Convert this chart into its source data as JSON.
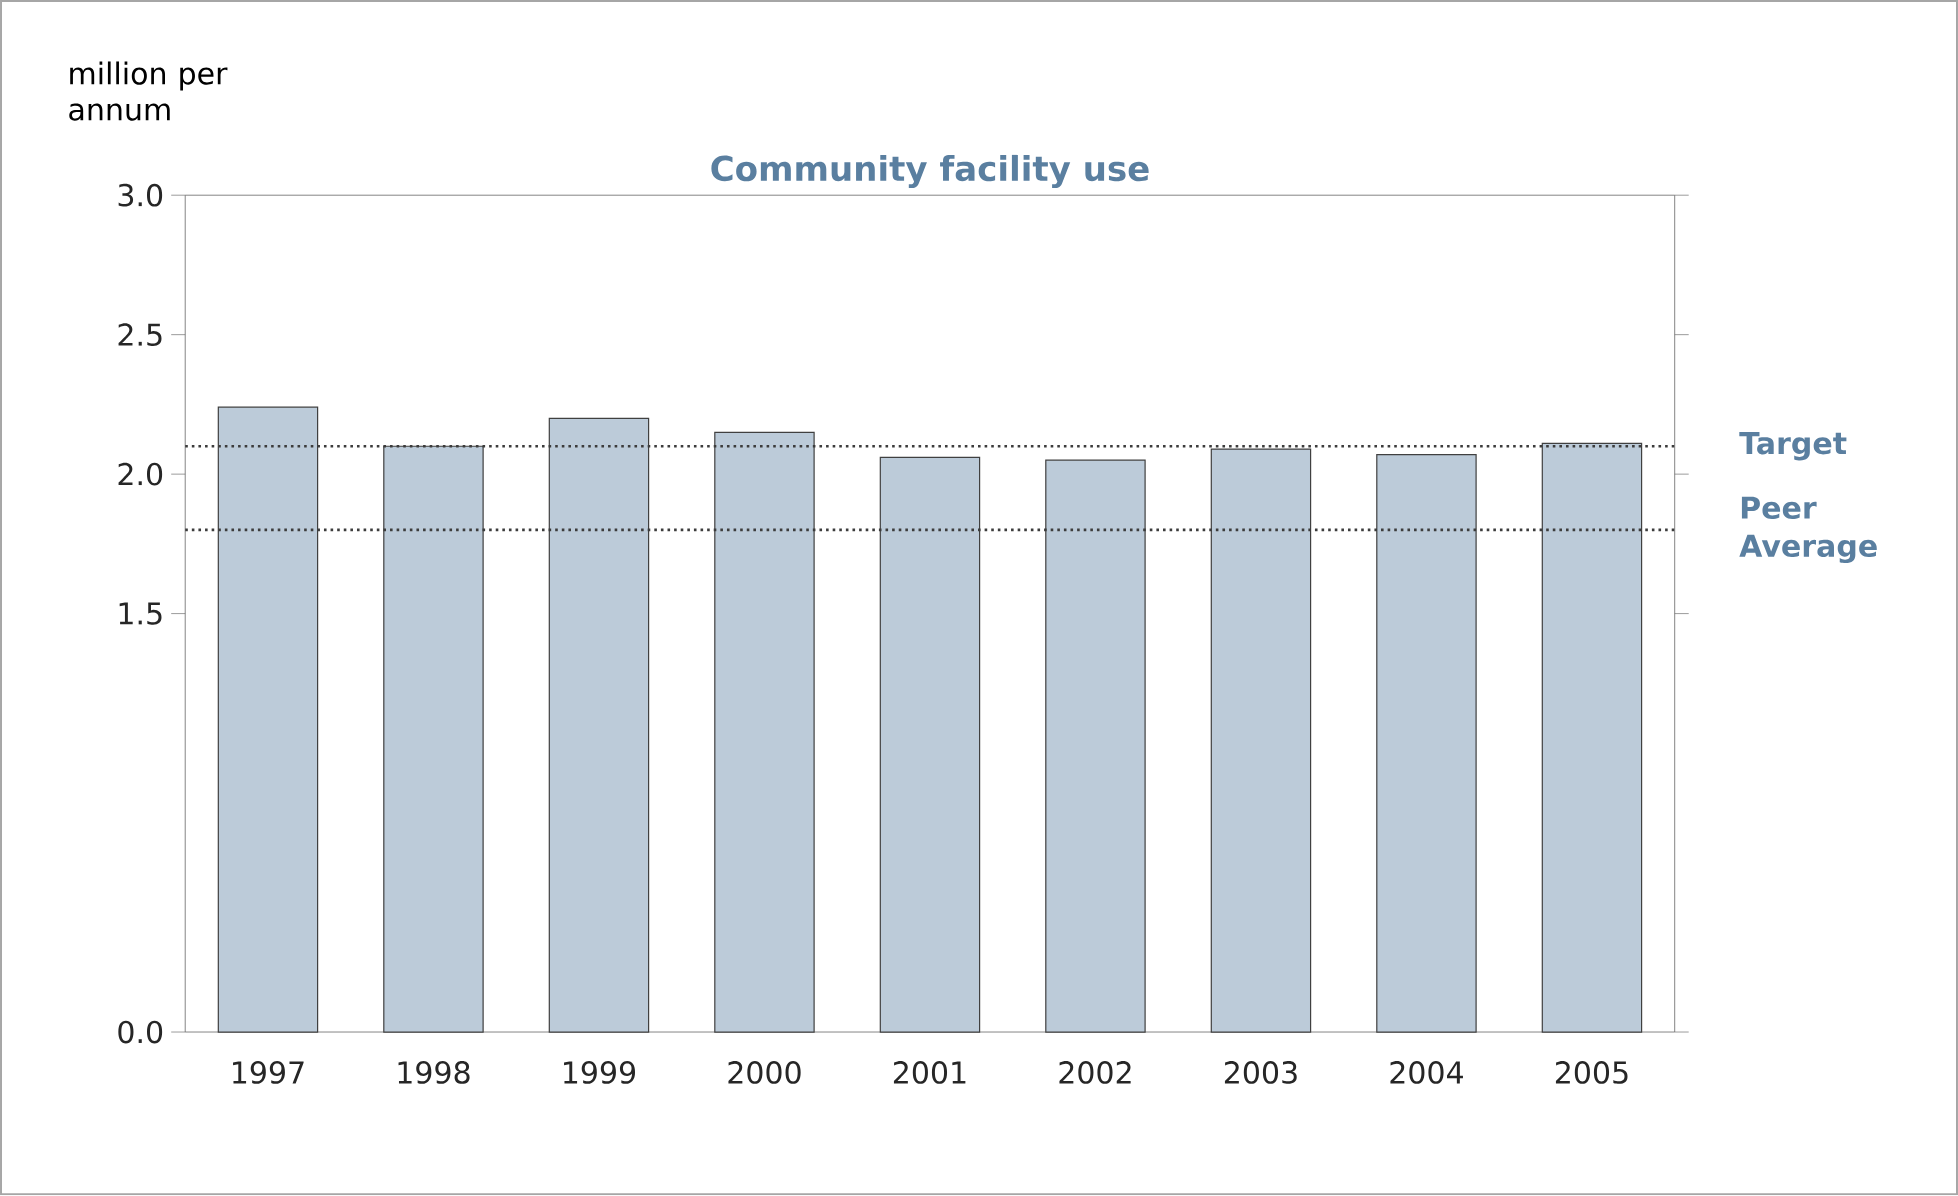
{
  "chart_data": {
    "type": "bar",
    "title": "Community facility use",
    "ylabel": "million per annum",
    "categories": [
      "1997",
      "1998",
      "1999",
      "2000",
      "2001",
      "2002",
      "2003",
      "2004",
      "2005"
    ],
    "values": [
      2.24,
      2.1,
      2.2,
      2.15,
      2.06,
      2.05,
      2.09,
      2.07,
      2.11
    ],
    "color": "#bccbd9",
    "ylim": [
      0.0,
      3.0
    ],
    "yticks": [
      {
        "value": 0.0,
        "label": "0.0"
      },
      1.5,
      {
        "value": 2.0,
        "label": "2.0"
      },
      2.5,
      {
        "value": 3.0,
        "label": "3.0"
      }
    ],
    "ref_lines": [
      {
        "axis": "y",
        "value": 2.1,
        "label": "Target",
        "color": "#3c3c3c",
        "line_style": "dotted"
      },
      {
        "axis": "y",
        "value": 1.8,
        "label": "Peer Average",
        "color": "#3c3c3c",
        "line_style": "dotted"
      }
    ],
    "grid": false,
    "legend": false
  }
}
